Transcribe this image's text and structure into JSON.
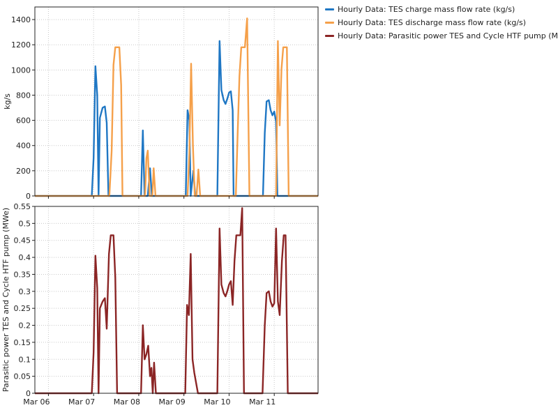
{
  "chart_data": [
    {
      "type": "line",
      "ylabel": "kg/s",
      "ylim": [
        0,
        1500
      ],
      "yticks": [
        0,
        200,
        400,
        600,
        800,
        1000,
        1200,
        1400
      ],
      "xticklabels": [
        "Mar 06",
        "Mar 07",
        "Mar 08",
        "Mar 09",
        "Mar 10",
        "Mar 11"
      ],
      "xtick_days": [
        6,
        7,
        8,
        9,
        10,
        11
      ],
      "xlim_days": [
        5.7,
        11.97
      ],
      "grid": true,
      "legend": "outside-right",
      "series": [
        {
          "name": "Hourly Data: TES charge mass flow rate (kg/s)",
          "color": "#1f77c4",
          "points": [
            [
              5.7,
              0
            ],
            [
              6.8,
              0
            ],
            [
              6.96,
              0
            ],
            [
              7.0,
              300
            ],
            [
              7.04,
              1030
            ],
            [
              7.08,
              800
            ],
            [
              7.11,
              0
            ],
            [
              7.14,
              620
            ],
            [
              7.2,
              700
            ],
            [
              7.25,
              710
            ],
            [
              7.29,
              580
            ],
            [
              7.33,
              0
            ],
            [
              7.6,
              0
            ],
            [
              8.05,
              0
            ],
            [
              8.09,
              520
            ],
            [
              8.13,
              0
            ],
            [
              8.2,
              0
            ],
            [
              8.25,
              220
            ],
            [
              8.29,
              0
            ],
            [
              9.0,
              0
            ],
            [
              9.04,
              0
            ],
            [
              9.08,
              680
            ],
            [
              9.12,
              600
            ],
            [
              9.15,
              0
            ],
            [
              9.21,
              200
            ],
            [
              9.25,
              0
            ],
            [
              9.7,
              0
            ],
            [
              9.74,
              0
            ],
            [
              9.79,
              1230
            ],
            [
              9.83,
              840
            ],
            [
              9.88,
              760
            ],
            [
              9.92,
              730
            ],
            [
              9.96,
              770
            ],
            [
              10.0,
              820
            ],
            [
              10.04,
              830
            ],
            [
              10.08,
              680
            ],
            [
              10.1,
              0
            ],
            [
              10.4,
              0
            ],
            [
              10.75,
              0
            ],
            [
              10.79,
              500
            ],
            [
              10.83,
              750
            ],
            [
              10.88,
              760
            ],
            [
              10.92,
              680
            ],
            [
              10.96,
              640
            ],
            [
              11.0,
              670
            ],
            [
              11.04,
              590
            ],
            [
              11.07,
              0
            ],
            [
              11.97,
              0
            ]
          ]
        },
        {
          "name": "Hourly Data: TES discharge mass flow rate (kg/s)",
          "color": "#f5a04a",
          "points": [
            [
              5.7,
              0
            ],
            [
              7.35,
              0
            ],
            [
              7.4,
              360
            ],
            [
              7.44,
              1040
            ],
            [
              7.48,
              1180
            ],
            [
              7.52,
              1180
            ],
            [
              7.57,
              1180
            ],
            [
              7.61,
              880
            ],
            [
              7.64,
              0
            ],
            [
              8.14,
              0
            ],
            [
              8.17,
              300
            ],
            [
              8.2,
              360
            ],
            [
              8.24,
              0
            ],
            [
              8.3,
              0
            ],
            [
              8.33,
              220
            ],
            [
              8.37,
              0
            ],
            [
              9.08,
              0
            ],
            [
              9.12,
              340
            ],
            [
              9.16,
              1050
            ],
            [
              9.2,
              400
            ],
            [
              9.24,
              0
            ],
            [
              9.28,
              0
            ],
            [
              9.32,
              210
            ],
            [
              9.36,
              0
            ],
            [
              10.15,
              0
            ],
            [
              10.19,
              490
            ],
            [
              10.23,
              950
            ],
            [
              10.27,
              1180
            ],
            [
              10.31,
              1180
            ],
            [
              10.35,
              1180
            ],
            [
              10.4,
              1410
            ],
            [
              10.45,
              0
            ],
            [
              11.04,
              0
            ],
            [
              11.08,
              1230
            ],
            [
              11.12,
              560
            ],
            [
              11.16,
              1010
            ],
            [
              11.2,
              1180
            ],
            [
              11.24,
              1180
            ],
            [
              11.28,
              1180
            ],
            [
              11.32,
              0
            ],
            [
              11.97,
              0
            ]
          ]
        }
      ]
    },
    {
      "type": "line",
      "ylabel": "Parasitic power TES and Cycle HTF pump (MWe)",
      "ylim": [
        0,
        0.55
      ],
      "yticks": [
        0,
        0.05,
        0.1,
        0.15,
        0.2,
        0.25,
        0.3,
        0.35,
        0.4,
        0.45,
        0.5,
        0.55
      ],
      "xticklabels": [
        "Mar 06",
        "Mar 07",
        "Mar 08",
        "Mar 09",
        "Mar 10",
        "Mar 11"
      ],
      "xtick_days": [
        6,
        7,
        8,
        9,
        10,
        11
      ],
      "xlim_days": [
        5.7,
        11.97
      ],
      "grid": true,
      "series": [
        {
          "name": "Hourly Data: Parasitic power TES and Cycle HTF pump (MWe)",
          "color": "#8b2525",
          "points": [
            [
              5.7,
              0
            ],
            [
              6.96,
              0
            ],
            [
              7.0,
              0.12
            ],
            [
              7.04,
              0.405
            ],
            [
              7.08,
              0.31
            ],
            [
              7.11,
              0.0
            ],
            [
              7.14,
              0.25
            ],
            [
              7.2,
              0.27
            ],
            [
              7.25,
              0.28
            ],
            [
              7.29,
              0.19
            ],
            [
              7.34,
              0.41
            ],
            [
              7.38,
              0.465
            ],
            [
              7.44,
              0.465
            ],
            [
              7.48,
              0.34
            ],
            [
              7.52,
              0.0
            ],
            [
              8.05,
              0.0
            ],
            [
              8.09,
              0.2
            ],
            [
              8.13,
              0.1
            ],
            [
              8.17,
              0.115
            ],
            [
              8.21,
              0.14
            ],
            [
              8.25,
              0.05
            ],
            [
              8.28,
              0.075
            ],
            [
              8.31,
              0.0
            ],
            [
              8.34,
              0.09
            ],
            [
              8.38,
              0.0
            ],
            [
              9.03,
              0.0
            ],
            [
              9.07,
              0.26
            ],
            [
              9.11,
              0.23
            ],
            [
              9.15,
              0.41
            ],
            [
              9.19,
              0.1
            ],
            [
              9.23,
              0.06
            ],
            [
              9.27,
              0.03
            ],
            [
              9.31,
              0.0
            ],
            [
              9.74,
              0.0
            ],
            [
              9.79,
              0.485
            ],
            [
              9.83,
              0.32
            ],
            [
              9.88,
              0.295
            ],
            [
              9.92,
              0.285
            ],
            [
              9.96,
              0.3
            ],
            [
              10.0,
              0.32
            ],
            [
              10.04,
              0.33
            ],
            [
              10.08,
              0.26
            ],
            [
              10.12,
              0.39
            ],
            [
              10.16,
              0.465
            ],
            [
              10.2,
              0.465
            ],
            [
              10.25,
              0.465
            ],
            [
              10.29,
              0.545
            ],
            [
              10.33,
              0.0
            ],
            [
              10.74,
              0.0
            ],
            [
              10.79,
              0.2
            ],
            [
              10.83,
              0.295
            ],
            [
              10.88,
              0.3
            ],
            [
              10.92,
              0.27
            ],
            [
              10.96,
              0.255
            ],
            [
              11.0,
              0.265
            ],
            [
              11.04,
              0.485
            ],
            [
              11.08,
              0.27
            ],
            [
              11.12,
              0.23
            ],
            [
              11.17,
              0.39
            ],
            [
              11.21,
              0.465
            ],
            [
              11.25,
              0.465
            ],
            [
              11.3,
              0.0
            ],
            [
              11.97,
              0.0
            ]
          ]
        }
      ]
    }
  ]
}
